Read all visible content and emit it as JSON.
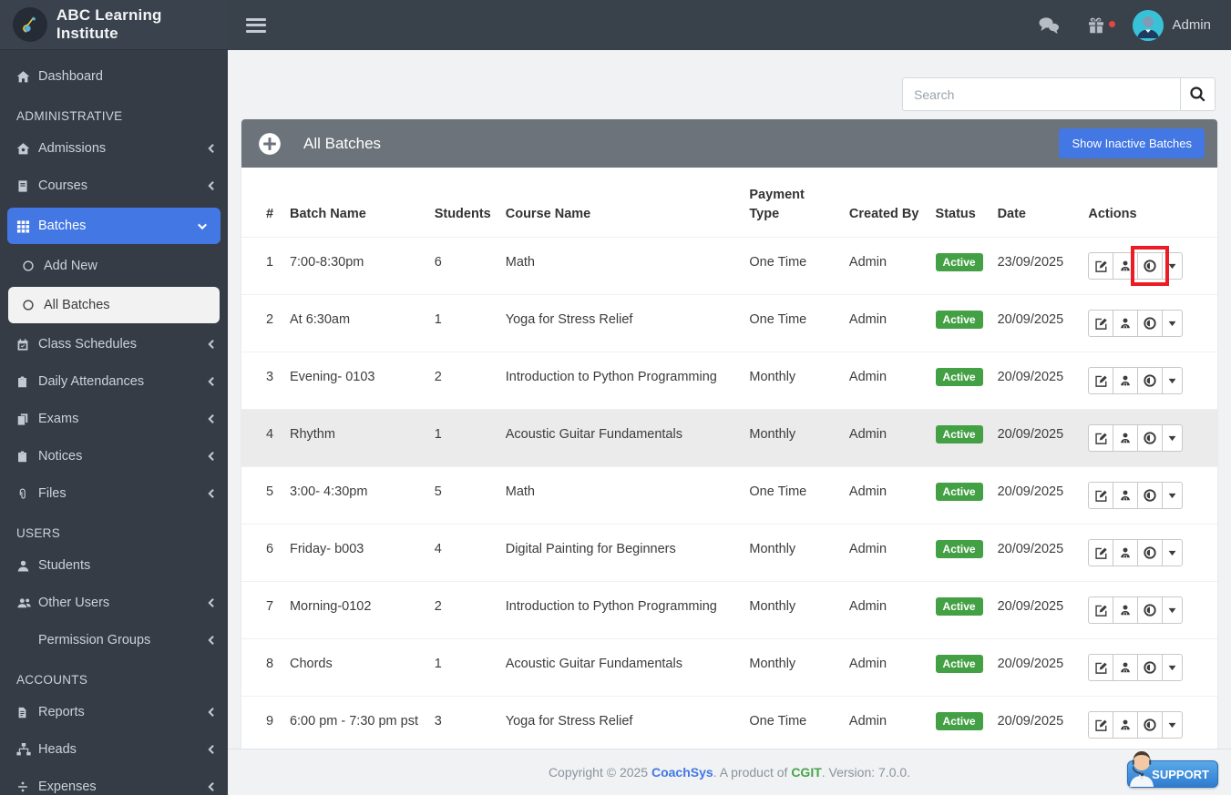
{
  "topbar": {
    "brand": "ABC Learning Institute",
    "user_label": "Admin",
    "icons": [
      "hamburger-icon",
      "chat-icon",
      "gift-icon",
      "avatar"
    ]
  },
  "search": {
    "placeholder": "Search",
    "value": ""
  },
  "sidebar": {
    "items": [
      {
        "type": "item",
        "name": "dashboard",
        "icon": "home",
        "label": "Dashboard"
      },
      {
        "type": "section",
        "label": "ADMINISTRATIVE"
      },
      {
        "type": "item",
        "name": "admissions",
        "icon": "school",
        "label": "Admissions",
        "chevron": "left"
      },
      {
        "type": "item",
        "name": "courses",
        "icon": "book",
        "label": "Courses",
        "chevron": "left"
      },
      {
        "type": "item",
        "name": "batches",
        "icon": "grid",
        "label": "Batches",
        "chevron": "down",
        "active": true
      },
      {
        "type": "sub",
        "name": "add-new",
        "icon": "circle",
        "label": "Add New"
      },
      {
        "type": "sub",
        "name": "all-batches",
        "icon": "circle",
        "label": "All Batches",
        "selected": true
      },
      {
        "type": "item",
        "name": "class-schedules",
        "icon": "calendar",
        "label": "Class Schedules",
        "chevron": "left"
      },
      {
        "type": "item",
        "name": "daily-attendances",
        "icon": "clipboard",
        "label": "Daily Attendances",
        "chevron": "left"
      },
      {
        "type": "item",
        "name": "exams",
        "icon": "copy",
        "label": "Exams",
        "chevron": "left"
      },
      {
        "type": "item",
        "name": "notices",
        "icon": "clipboard",
        "label": "Notices",
        "chevron": "left"
      },
      {
        "type": "item",
        "name": "files",
        "icon": "paperclip",
        "label": "Files",
        "chevron": "left"
      },
      {
        "type": "section",
        "label": "USERS"
      },
      {
        "type": "item",
        "name": "students",
        "icon": "user",
        "label": "Students"
      },
      {
        "type": "item",
        "name": "other-users",
        "icon": "users",
        "label": "Other Users",
        "chevron": "left"
      },
      {
        "type": "item",
        "name": "permission-groups",
        "icon": "none",
        "label": "Permission Groups",
        "chevron": "left"
      },
      {
        "type": "section",
        "label": "ACCOUNTS"
      },
      {
        "type": "item",
        "name": "reports",
        "icon": "file",
        "label": "Reports",
        "chevron": "left"
      },
      {
        "type": "item",
        "name": "heads",
        "icon": "sitemap",
        "label": "Heads",
        "chevron": "left"
      },
      {
        "type": "item",
        "name": "expenses",
        "icon": "divide",
        "label": "Expenses",
        "chevron": "left"
      }
    ]
  },
  "panel": {
    "title": "All Batches",
    "show_inactive_label": "Show Inactive Batches",
    "header_icon": "plus-circle-icon"
  },
  "table": {
    "headers": [
      "#",
      "Batch Name",
      "Students",
      "Course Name",
      "Payment Type",
      "Created By",
      "Status",
      "Date",
      "Actions"
    ],
    "action_icons": [
      "edit-icon",
      "students-icon",
      "view-eye-icon",
      "caret-down-icon"
    ],
    "rows": [
      {
        "num": "1",
        "batch": "7:00-8:30pm",
        "students": "6",
        "course": "Math",
        "payment": "One Time",
        "created_by": "Admin",
        "status": "Active",
        "date": "23/09/2025",
        "highlight_action": "view"
      },
      {
        "num": "2",
        "batch": "At 6:30am",
        "students": "1",
        "course": "Yoga for Stress Relief",
        "payment": "One Time",
        "created_by": "Admin",
        "status": "Active",
        "date": "20/09/2025"
      },
      {
        "num": "3",
        "batch": "Evening- 0103",
        "students": "2",
        "course": "Introduction to Python Programming",
        "payment": "Monthly",
        "created_by": "Admin",
        "status": "Active",
        "date": "20/09/2025"
      },
      {
        "num": "4",
        "batch": "Rhythm",
        "students": "1",
        "course": "Acoustic Guitar Fundamentals",
        "payment": "Monthly",
        "created_by": "Admin",
        "status": "Active",
        "date": "20/09/2025",
        "striped": true
      },
      {
        "num": "5",
        "batch": "3:00- 4:30pm",
        "students": "5",
        "course": "Math",
        "payment": "One Time",
        "created_by": "Admin",
        "status": "Active",
        "date": "20/09/2025"
      },
      {
        "num": "6",
        "batch": "Friday- b003",
        "students": "4",
        "course": "Digital Painting for Beginners",
        "payment": "Monthly",
        "created_by": "Admin",
        "status": "Active",
        "date": "20/09/2025"
      },
      {
        "num": "7",
        "batch": "Morning-0102",
        "students": "2",
        "course": "Introduction to Python Programming",
        "payment": "Monthly",
        "created_by": "Admin",
        "status": "Active",
        "date": "20/09/2025"
      },
      {
        "num": "8",
        "batch": "Chords",
        "students": "1",
        "course": "Acoustic Guitar Fundamentals",
        "payment": "Monthly",
        "created_by": "Admin",
        "status": "Active",
        "date": "20/09/2025"
      },
      {
        "num": "9",
        "batch": "6:00 pm - 7:30 pm pst",
        "students": "3",
        "course": "Yoga for Stress Relief",
        "payment": "One Time",
        "created_by": "Admin",
        "status": "Active",
        "date": "20/09/2025"
      }
    ]
  },
  "footer": {
    "prefix": "Copyright © 2025 ",
    "brand": "CoachSys",
    "mid": ". A product of ",
    "company": "CGIT",
    "suffix": ". Version: 7.0.0.",
    "support_label": "SUPPORT"
  },
  "colors": {
    "accent_blue": "#4277e4",
    "status_green": "#44a044",
    "highlight_red": "#ed1c24",
    "panel_header_gray": "#6c737b",
    "topbar_dark": "#39414b",
    "sidebar_dark": "#353c46"
  }
}
